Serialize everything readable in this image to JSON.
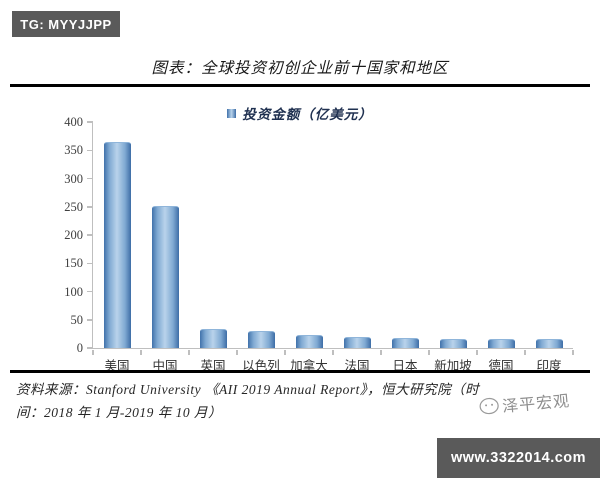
{
  "badges": {
    "top_left": "TG: MYYJJPP",
    "bottom_right": "www.3322014.com"
  },
  "header": {
    "title": "图表：全球投资初创企业前十国家和地区"
  },
  "legend": {
    "label": "投资金额（亿美元）"
  },
  "chart_data": {
    "type": "bar",
    "title": "图表：全球投资初创企业前十国家和地区",
    "legend": [
      "投资金额（亿美元）"
    ],
    "categories": [
      "美国",
      "中国",
      "英国",
      "以色列",
      "加拿大",
      "法国",
      "日本",
      "新加坡",
      "德国",
      "印度"
    ],
    "values": [
      363,
      250,
      32,
      28,
      22,
      18,
      16,
      15,
      14,
      14
    ],
    "xlabel": "",
    "ylabel": "",
    "ylim": [
      0,
      400
    ],
    "yticks": [
      0,
      50,
      100,
      150,
      200,
      250,
      300,
      350,
      400
    ],
    "grid": false,
    "legend_position": "top",
    "bar_color_edge": "#3d6da6",
    "bar_color_mid": "#b9d3eb"
  },
  "source": {
    "line1": "资料来源：Stanford University 《AII 2019 Annual Report》，恒大研究院（时",
    "line2": "间：2018 年 1 月-2019 年 10 月）"
  },
  "watermark": {
    "text": "泽平宏观"
  }
}
